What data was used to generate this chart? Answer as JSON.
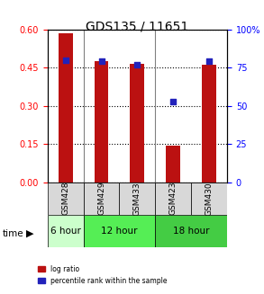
{
  "title": "GDS135 / 11651",
  "samples": [
    "GSM428",
    "GSM429",
    "GSM433",
    "GSM423",
    "GSM430"
  ],
  "log_ratio": [
    0.585,
    0.475,
    0.465,
    0.145,
    0.46
  ],
  "percentile_rank": [
    0.8,
    0.79,
    0.77,
    0.525,
    0.79
  ],
  "time_groups": [
    {
      "label": "6 hour",
      "samples": [
        "GSM428"
      ],
      "color": "#aaffaa"
    },
    {
      "label": "12 hour",
      "samples": [
        "GSM429",
        "GSM433"
      ],
      "color": "#66dd66"
    },
    {
      "label": "18 hour",
      "samples": [
        "GSM423",
        "GSM430"
      ],
      "color": "#44cc44"
    }
  ],
  "bar_color": "#bb1111",
  "marker_color": "#2222bb",
  "left_yticks": [
    0,
    0.15,
    0.3,
    0.45,
    0.6
  ],
  "right_yticks": [
    0,
    25,
    50,
    75,
    100
  ],
  "ylim_left": [
    0,
    0.6
  ],
  "ylim_right": [
    0,
    100
  ],
  "bg_color": "#f0f0f0",
  "legend_log_ratio": "log ratio",
  "legend_percentile": "percentile rank within the sample",
  "time_label": "time",
  "bar_width": 0.4
}
